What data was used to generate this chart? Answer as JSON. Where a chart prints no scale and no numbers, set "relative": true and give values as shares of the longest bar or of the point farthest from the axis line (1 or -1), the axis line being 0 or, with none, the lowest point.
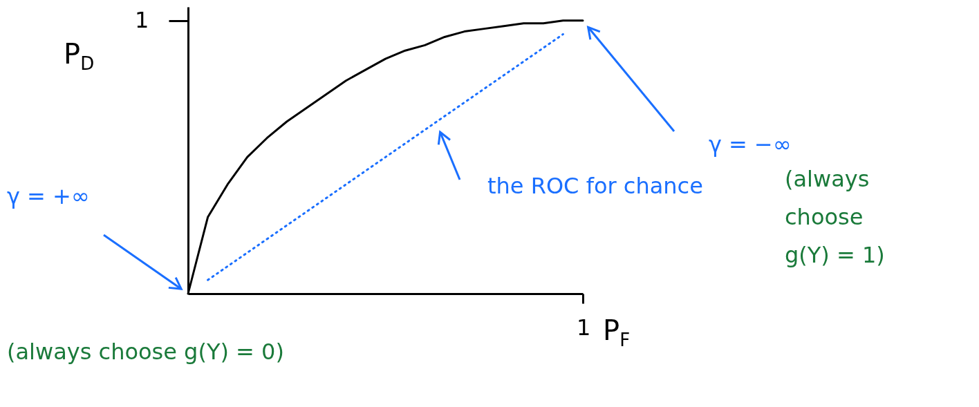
{
  "chart_data": {
    "type": "line",
    "xlabel": "P$_{F}$",
    "ylabel": "P$_{D}$",
    "relative": true,
    "marker": "none",
    "categories": [
      null,
      null,
      null,
      null,
      null,
      null,
      null,
      null,
      null,
      null,
      null,
      null,
      null,
      null,
      null,
      null,
      null,
      null,
      null,
      null,
      null
    ],
    "series": [
      {
        "color": "#000000",
        "line_style": "solid",
        "values": [
          0,
          0.28,
          0.4,
          0.5,
          0.57,
          0.63,
          0.68,
          0.73,
          0.78,
          0.82,
          0.86,
          0.89,
          0.91,
          0.94,
          0.96,
          0.97,
          0.98,
          0.99,
          0.99,
          1,
          1
        ]
      },
      {
        "color": "#1a6fff",
        "line_style": "dotted",
        "values": [
          null,
          0.05,
          0.1,
          0.15,
          0.2,
          0.25,
          0.3,
          0.35,
          0.4,
          0.45,
          0.5,
          0.55,
          0.6,
          0.65,
          0.7,
          0.75,
          0.8,
          0.85,
          0.9,
          0.95,
          null
        ]
      }
    ],
    "annotations": [
      "γ = +∞",
      "(always choose g(Y) = 0)",
      "the ROC for chance",
      "γ = −∞",
      "(always choose g(Y) = 1)",
      "1",
      "1"
    ]
  }
}
